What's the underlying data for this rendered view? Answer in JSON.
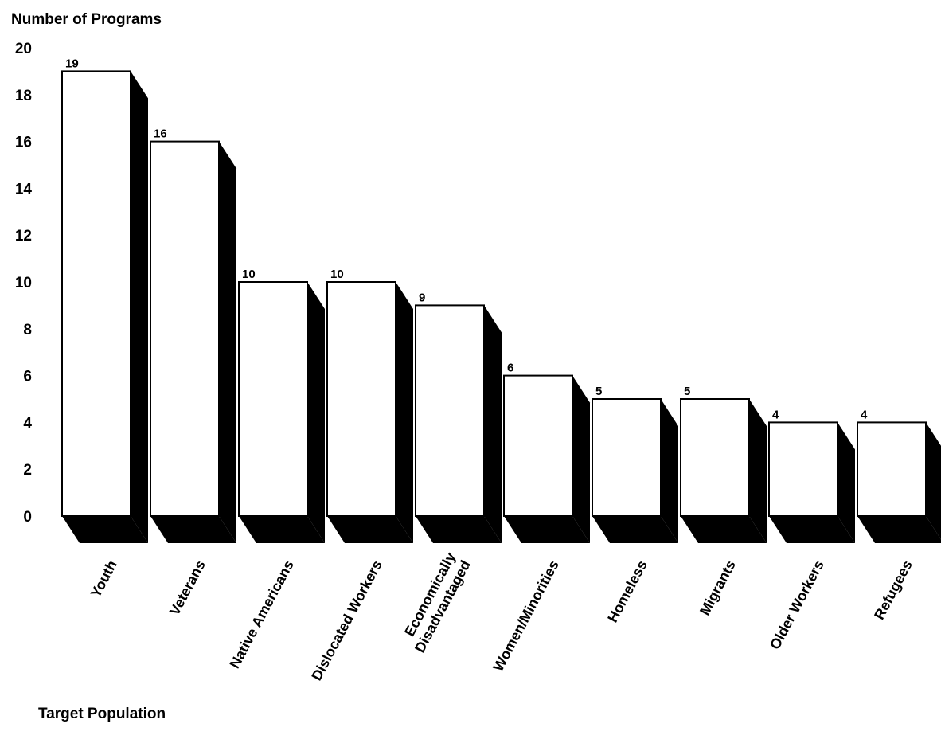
{
  "chart_data": {
    "type": "bar",
    "xlabel": "Target Population",
    "ylabel": "Number of Programs",
    "ylim": [
      0,
      20
    ],
    "yticks": [
      0,
      2,
      4,
      6,
      8,
      10,
      12,
      14,
      16,
      18,
      20
    ],
    "grid": false,
    "legend": "none",
    "style": "3d-bars-with-black-shadow",
    "categories": [
      [
        "Youth"
      ],
      [
        "Veterans"
      ],
      [
        "Native Americans"
      ],
      [
        "Dislocated Workers"
      ],
      [
        "Economically",
        "Disadvantaged"
      ],
      [
        "Women/Minorities"
      ],
      [
        "Homeless"
      ],
      [
        "Migrants"
      ],
      [
        "Older Workers"
      ],
      [
        "Refugees"
      ]
    ],
    "values": [
      19,
      16,
      10,
      10,
      9,
      6,
      5,
      5,
      4,
      4
    ],
    "data_labels": [
      "19",
      "16",
      "10",
      "10",
      "9",
      "6",
      "5",
      "5",
      "4",
      "4"
    ],
    "colors": {
      "bar": "#ffffff",
      "shadow": "#000000",
      "outline": "#000000"
    }
  }
}
